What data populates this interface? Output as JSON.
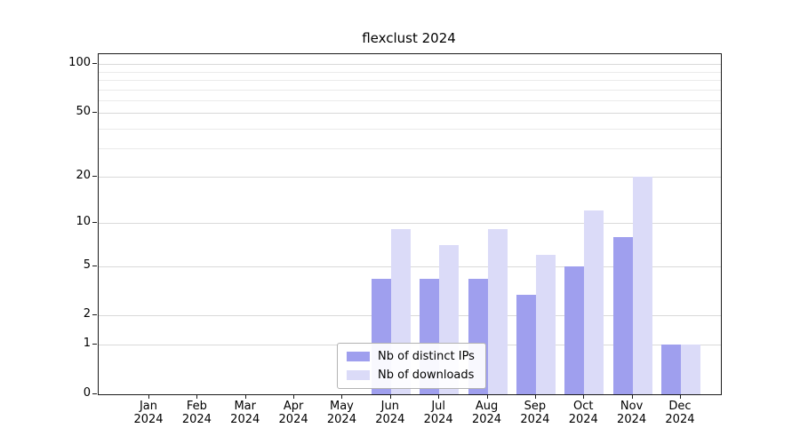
{
  "chart_data": {
    "type": "bar",
    "title": "flexclust 2024",
    "x_tick_labels": [
      {
        "month": "Jan",
        "year": "2024"
      },
      {
        "month": "Feb",
        "year": "2024"
      },
      {
        "month": "Mar",
        "year": "2024"
      },
      {
        "month": "Apr",
        "year": "2024"
      },
      {
        "month": "May",
        "year": "2024"
      },
      {
        "month": "Jun",
        "year": "2024"
      },
      {
        "month": "Jul",
        "year": "2024"
      },
      {
        "month": "Aug",
        "year": "2024"
      },
      {
        "month": "Sep",
        "year": "2024"
      },
      {
        "month": "Oct",
        "year": "2024"
      },
      {
        "month": "Nov",
        "year": "2024"
      },
      {
        "month": "Dec",
        "year": "2024"
      }
    ],
    "series": [
      {
        "name": "Nb of distinct IPs",
        "color": "#9f9fee",
        "values": [
          0,
          0,
          0,
          0,
          0,
          4,
          4,
          4,
          3,
          5,
          8,
          1
        ]
      },
      {
        "name": "Nb of downloads",
        "color": "#dbdbf8",
        "values": [
          0,
          0,
          0,
          0,
          0,
          9,
          7,
          9,
          6,
          12,
          20,
          1
        ]
      }
    ],
    "y_ticks": [
      0,
      1,
      2,
      5,
      10,
      20,
      50,
      100
    ],
    "y_minor_gridlines": [
      30,
      40,
      60,
      70,
      80,
      90
    ],
    "y_scale": "log1p",
    "ylim": [
      0,
      115
    ],
    "grid": true,
    "legend_position": "bottom-center"
  },
  "colors": {
    "grid_major": "#d9d9d9",
    "grid_minor": "#eaeaea",
    "axis": "#1a1a1a",
    "bar_distinct_ips": "#9f9fee",
    "bar_downloads": "#dbdbf8"
  }
}
